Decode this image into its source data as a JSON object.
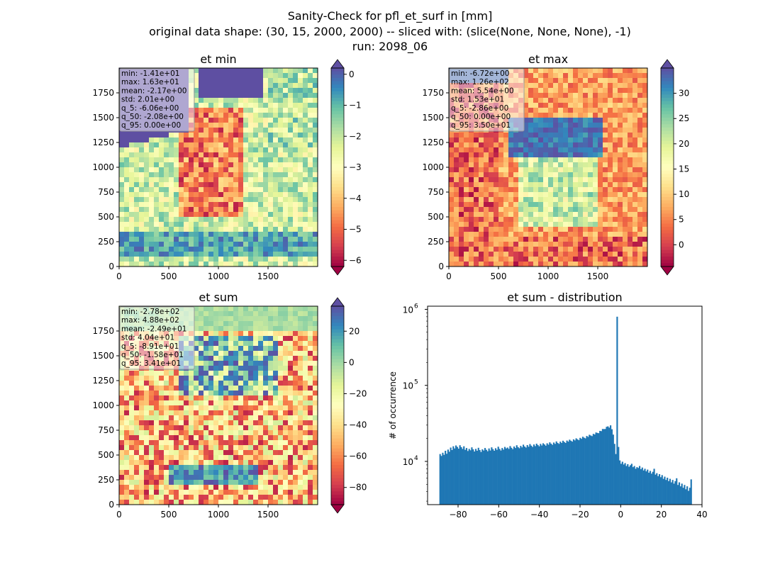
{
  "suptitle": {
    "line1": "Sanity-Check for pfl_et_surf in [mm]",
    "line2": "original data shape: (30, 15, 2000, 2000) -- sliced with: (slice(None, None, None), -1)",
    "line3": "run: 2098_06"
  },
  "colors": {
    "spectral": [
      "#9e0142",
      "#d53e4f",
      "#f46d43",
      "#fdae61",
      "#fee08b",
      "#ffffbf",
      "#e6f598",
      "#abdda4",
      "#66c2a5",
      "#3288bd",
      "#5e4fa2"
    ],
    "hist_bar": "#1f77b4"
  },
  "panels": [
    {
      "title": "et min",
      "xticks": [
        "0",
        "500",
        "1000",
        "1500"
      ],
      "yticks": [
        "0",
        "250",
        "500",
        "750",
        "1000",
        "1250",
        "1500",
        "1750"
      ],
      "stats": [
        "min: -1.41e+01",
        "max: 1.63e+01",
        "mean: -2.17e+00",
        "std: 2.01e+00",
        "q_5: -6.06e+00",
        "q_50: -2.08e+00",
        "q_95: 0.00e+00"
      ],
      "colorbar": {
        "vmin": -6.2,
        "vmax": 0.2,
        "ticks": [
          0,
          -1,
          -2,
          -3,
          -4,
          -5,
          -6
        ],
        "tick_labels": [
          "0",
          "−1",
          "−2",
          "−3",
          "−4",
          "−5",
          "−6"
        ]
      }
    },
    {
      "title": "et max",
      "xticks": [
        "0",
        "500",
        "1000",
        "1500"
      ],
      "yticks": [
        "0",
        "250",
        "500",
        "750",
        "1000",
        "1250",
        "1500",
        "1750"
      ],
      "stats": [
        "min: -6.72e+00",
        "max: 1.26e+02",
        "mean: 5.54e+00",
        "std: 1.53e+01",
        "q_5: -2.86e+00",
        "q_50: 0.00e+00",
        "q_95: 3.50e+01"
      ],
      "colorbar": {
        "vmin": -4.3,
        "vmax": 35,
        "ticks": [
          30,
          25,
          20,
          15,
          10,
          5,
          0
        ],
        "tick_labels": [
          "30",
          "25",
          "20",
          "15",
          "10",
          "5",
          "0"
        ]
      }
    },
    {
      "title": "et sum",
      "xticks": [
        "0",
        "500",
        "1000",
        "1500"
      ],
      "yticks": [
        "0",
        "250",
        "500",
        "750",
        "1000",
        "1250",
        "1500",
        "1750"
      ],
      "stats": [
        "min: -2.78e+02",
        "max: 4.88e+02",
        "mean: -2.49e+01",
        "std: 4.04e+01",
        "q_5: -8.91e+01",
        "q_50: -1.58e+01",
        "q_95: 3.41e+01"
      ],
      "colorbar": {
        "vmin": -91,
        "vmax": 36,
        "ticks": [
          20,
          0,
          -20,
          -40,
          -60,
          -80
        ],
        "tick_labels": [
          "20",
          "0",
          "−20",
          "−40",
          "−60",
          "−80"
        ]
      }
    }
  ],
  "chart_data": {
    "type": "bar",
    "title": "et sum - distribution",
    "xlabel": "",
    "ylabel": "# of occurrence",
    "xlim": [
      -95,
      40
    ],
    "ylim": [
      2700,
      1100000
    ],
    "yscale": "log",
    "xticks": [
      -80,
      -60,
      -40,
      -20,
      0,
      20,
      40
    ],
    "xtick_labels": [
      "−80",
      "−60",
      "−40",
      "−20",
      "0",
      "20",
      "40"
    ],
    "yticks": [
      10000,
      100000,
      1000000
    ],
    "ytick_labels": [
      "10",
      "10",
      "10"
    ],
    "ytick_exponents": [
      "4",
      "5",
      "6"
    ],
    "bin_start": -89.2,
    "bin_width": 0.65,
    "values": [
      12500,
      11800,
      13000,
      12200,
      13800,
      12600,
      14300,
      13400,
      15200,
      14100,
      15800,
      14800,
      16200,
      15500,
      14700,
      16300,
      15400,
      14600,
      15800,
      14200,
      15000,
      13700,
      14600,
      14000,
      15300,
      14400,
      13500,
      14600,
      13800,
      15100,
      14100,
      13300,
      14400,
      13900,
      15000,
      14200,
      13600,
      14800,
      13900,
      15300,
      14500,
      13800,
      14900,
      14200,
      15600,
      14600,
      13900,
      15000,
      14300,
      15500,
      14800,
      15200,
      14600,
      15900,
      15100,
      14500,
      15700,
      15000,
      16300,
      15400,
      14900,
      16000,
      15300,
      16600,
      15700,
      15200,
      16400,
      15600,
      16900,
      16100,
      15500,
      16700,
      15900,
      17100,
      16400,
      15800,
      17000,
      16200,
      17300,
      16700,
      16100,
      17300,
      16600,
      17800,
      17100,
      16500,
      17700,
      17000,
      18300,
      17500,
      17000,
      18200,
      17500,
      18700,
      18000,
      17500,
      18800,
      18200,
      19300,
      18700,
      18200,
      19500,
      18900,
      20100,
      19500,
      19000,
      20400,
      19800,
      21100,
      20500,
      20100,
      21600,
      21000,
      22400,
      21900,
      21500,
      23000,
      22600,
      24000,
      23700,
      23500,
      25200,
      25000,
      26700,
      26600,
      26700,
      28500,
      28900,
      27800,
      29800,
      26500,
      22500,
      17000,
      12500,
      800000,
      15500,
      10300,
      9300,
      9900,
      9100,
      9500,
      8700,
      9200,
      8500,
      8900,
      9300,
      8400,
      8700,
      8000,
      8400,
      8200,
      8700,
      7900,
      8300,
      7600,
      8000,
      7400,
      7800,
      7100,
      7500,
      6900,
      7300,
      8000,
      6700,
      7000,
      6400,
      6800,
      6200,
      6600,
      5900,
      6300,
      5700,
      6100,
      5500,
      5900,
      5300,
      5700,
      5100,
      5500,
      6000,
      4900,
      5300,
      4700,
      5100,
      4500,
      4900,
      4300,
      4700,
      4100,
      4500,
      5800
    ]
  }
}
